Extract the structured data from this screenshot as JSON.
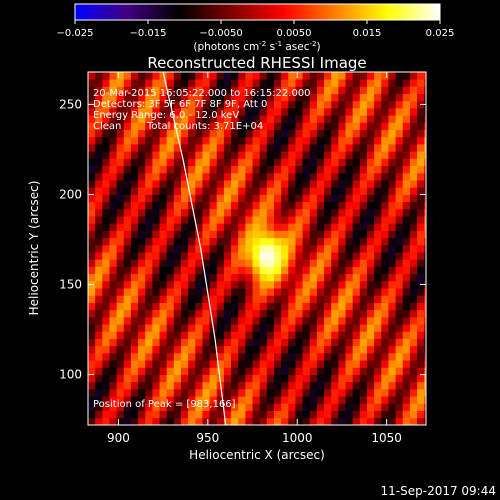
{
  "chart_data": {
    "type": "heatmap",
    "title": "Reconstructed RHESSI Image",
    "colorbar": {
      "ticks": [
        "−0.025",
        "−0.015",
        "−0.0050",
        "0.0050",
        "0.015",
        "0.025"
      ],
      "range": [
        -0.025,
        0.025
      ],
      "units_label": "(photons cm",
      "units_exp1": "-2",
      "units_mid": " s",
      "units_exp2": "-1",
      "units_mid2": " asec",
      "units_exp3": "-2",
      "units_close": ")",
      "colormap": [
        "#0000ff",
        "#400080",
        "#000000",
        "#800000",
        "#ff0000",
        "#ff8000",
        "#ffff00",
        "#ffffff"
      ]
    },
    "xlabel": "Heliocentric X (arcsec)",
    "ylabel": "Heliocentric Y (arcsec)",
    "xlim": [
      883,
      1072
    ],
    "ylim": [
      72,
      268
    ],
    "x_ticks": [
      900,
      950,
      1000,
      1050
    ],
    "y_ticks": [
      100,
      150,
      200,
      250
    ],
    "annotations": {
      "time_range": "20-Mar-2015 16:05:22.000 to 16:15:22.000",
      "detectors": "Detectors: 3F 5F 6F 7F 8F 9F, Att 0",
      "energy": "Energy Range: 6.0 - 12.0 keV",
      "method": "Clean",
      "counts": "Total counts: 3.71E+04",
      "peak": "Position of Peak = [983,166]"
    },
    "source": {
      "peak_x": 983,
      "peak_y": 166,
      "peak_value": 0.025
    },
    "limb_curve": {
      "x": [
        925,
        936,
        946,
        954,
        960
      ],
      "y": [
        268,
        220,
        170,
        120,
        72
      ]
    }
  },
  "footer": {
    "date": "11-Sep-2017 09:44"
  }
}
